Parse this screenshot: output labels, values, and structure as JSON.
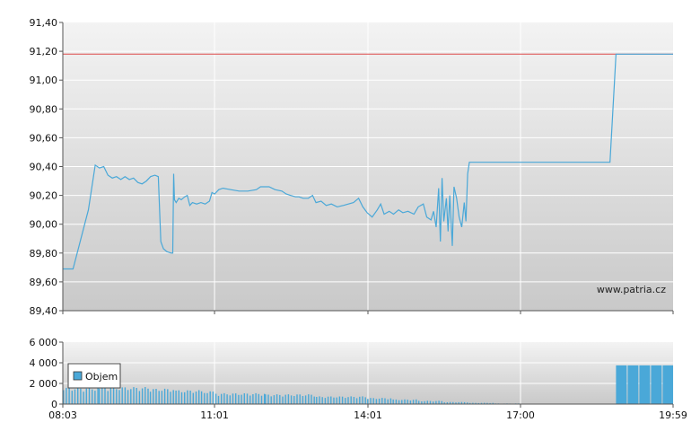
{
  "watermark": "www.patria.cz",
  "colors": {
    "price_line": "#4aa8d8",
    "reference_line": "#dd4a4a",
    "volume_bar": "#4aa8d8",
    "grid": "#ffffff",
    "plot_bg_top": "#f2f2f2",
    "plot_bg_bottom": "#c8c8c8"
  },
  "chart_data": [
    {
      "type": "line",
      "title": "",
      "xlabel": "",
      "ylabel": "",
      "ylim": [
        89.4,
        91.4
      ],
      "xlim": [
        "08:03",
        "19:59"
      ],
      "y_ticks": [
        "89,40",
        "89,60",
        "89,80",
        "90,00",
        "90,20",
        "90,40",
        "90,60",
        "90,80",
        "91,00",
        "91,20",
        "91,40"
      ],
      "grid": true,
      "reference_line": {
        "value": 91.18,
        "color": "#dd4a4a"
      },
      "series": [
        {
          "color": "#4aa8d8",
          "points": [
            [
              "08:03",
              89.69
            ],
            [
              "08:15",
              89.69
            ],
            [
              "08:33",
              90.1
            ],
            [
              "08:41",
              90.41
            ],
            [
              "08:46",
              90.39
            ],
            [
              "08:51",
              90.4
            ],
            [
              "08:56",
              90.34
            ],
            [
              "09:01",
              90.32
            ],
            [
              "09:06",
              90.33
            ],
            [
              "09:11",
              90.31
            ],
            [
              "09:16",
              90.33
            ],
            [
              "09:21",
              90.31
            ],
            [
              "09:26",
              90.32
            ],
            [
              "09:31",
              90.29
            ],
            [
              "09:36",
              90.28
            ],
            [
              "09:41",
              90.3
            ],
            [
              "09:46",
              90.33
            ],
            [
              "09:51",
              90.34
            ],
            [
              "09:55",
              90.33
            ],
            [
              "09:58",
              89.88
            ],
            [
              "10:01",
              89.83
            ],
            [
              "10:05",
              89.81
            ],
            [
              "10:10",
              89.8
            ],
            [
              "10:12",
              89.8
            ],
            [
              "10:13",
              90.35
            ],
            [
              "10:14",
              90.17
            ],
            [
              "10:16",
              90.15
            ],
            [
              "10:19",
              90.18
            ],
            [
              "10:22",
              90.17
            ],
            [
              "10:26",
              90.19
            ],
            [
              "10:29",
              90.2
            ],
            [
              "10:32",
              90.13
            ],
            [
              "10:35",
              90.15
            ],
            [
              "10:40",
              90.14
            ],
            [
              "10:45",
              90.15
            ],
            [
              "10:50",
              90.14
            ],
            [
              "10:55",
              90.16
            ],
            [
              "10:58",
              90.22
            ],
            [
              "11:01",
              90.21
            ],
            [
              "11:06",
              90.24
            ],
            [
              "11:11",
              90.25
            ],
            [
              "11:20",
              90.24
            ],
            [
              "11:30",
              90.23
            ],
            [
              "11:40",
              90.23
            ],
            [
              "11:50",
              90.24
            ],
            [
              "11:55",
              90.26
            ],
            [
              "12:05",
              90.26
            ],
            [
              "12:12",
              90.24
            ],
            [
              "12:20",
              90.23
            ],
            [
              "12:25",
              90.21
            ],
            [
              "12:30",
              90.2
            ],
            [
              "12:36",
              90.19
            ],
            [
              "12:40",
              90.19
            ],
            [
              "12:45",
              90.18
            ],
            [
              "12:51",
              90.18
            ],
            [
              "12:56",
              90.2
            ],
            [
              "13:00",
              90.15
            ],
            [
              "13:06",
              90.16
            ],
            [
              "13:12",
              90.13
            ],
            [
              "13:18",
              90.14
            ],
            [
              "13:25",
              90.12
            ],
            [
              "13:32",
              90.13
            ],
            [
              "13:38",
              90.14
            ],
            [
              "13:44",
              90.15
            ],
            [
              "13:50",
              90.18
            ],
            [
              "13:55",
              90.12
            ],
            [
              "14:00",
              90.08
            ],
            [
              "14:06",
              90.05
            ],
            [
              "14:12",
              90.1
            ],
            [
              "14:16",
              90.14
            ],
            [
              "14:20",
              90.07
            ],
            [
              "14:26",
              90.09
            ],
            [
              "14:31",
              90.07
            ],
            [
              "14:37",
              90.1
            ],
            [
              "14:42",
              90.08
            ],
            [
              "14:48",
              90.09
            ],
            [
              "14:55",
              90.07
            ],
            [
              "15:00",
              90.12
            ],
            [
              "15:06",
              90.14
            ],
            [
              "15:10",
              90.05
            ],
            [
              "15:15",
              90.03
            ],
            [
              "15:18",
              90.09
            ],
            [
              "15:21",
              89.98
            ],
            [
              "15:24",
              90.25
            ],
            [
              "15:26",
              89.88
            ],
            [
              "15:28",
              90.32
            ],
            [
              "15:30",
              90.02
            ],
            [
              "15:33",
              90.18
            ],
            [
              "15:35",
              89.95
            ],
            [
              "15:37",
              90.2
            ],
            [
              "15:40",
              89.85
            ],
            [
              "15:42",
              90.26
            ],
            [
              "15:45",
              90.18
            ],
            [
              "15:48",
              90.05
            ],
            [
              "15:51",
              89.98
            ],
            [
              "15:54",
              90.15
            ],
            [
              "15:56",
              90.02
            ],
            [
              "15:58",
              90.35
            ],
            [
              "16:00",
              90.43
            ],
            [
              "17:10",
              90.43
            ],
            [
              "18:10",
              90.43
            ],
            [
              "18:45",
              90.43
            ],
            [
              "18:52",
              91.18
            ],
            [
              "19:59",
              91.18
            ]
          ]
        }
      ]
    },
    {
      "type": "bar",
      "title": "",
      "xlabel": "",
      "ylabel": "",
      "ylim": [
        0,
        6000
      ],
      "xlim": [
        "08:03",
        "19:59"
      ],
      "y_ticks": [
        "0",
        "2 000",
        "4 000",
        "6 000"
      ],
      "x_ticks": [
        "08:03",
        "11:01",
        "14:01",
        "17:00",
        "19:59"
      ],
      "grid": true,
      "legend": {
        "position": "top-left",
        "entries": [
          "Objem"
        ]
      },
      "series": [
        {
          "name": "Objem",
          "color": "#4aa8d8",
          "segments": [
            [
              "08:03",
              "08:45",
              1600
            ],
            [
              "08:45",
              "09:45",
              1650
            ],
            [
              "09:45",
              "10:15",
              1500
            ],
            [
              "10:15",
              "10:45",
              1350
            ],
            [
              "10:45",
              "11:05",
              1250
            ],
            [
              "11:05",
              "12:00",
              1050
            ],
            [
              "12:00",
              "13:00",
              950
            ],
            [
              "13:00",
              "14:00",
              750
            ],
            [
              "14:00",
              "14:30",
              600
            ],
            [
              "14:30",
              "15:00",
              450
            ],
            [
              "15:00",
              "15:30",
              320
            ],
            [
              "15:30",
              "16:00",
              200
            ],
            [
              "16:00",
              "16:30",
              120
            ],
            [
              "16:30",
              "17:00",
              60
            ],
            [
              "17:00",
              "18:52",
              30
            ],
            [
              "18:52",
              "19:59",
              3750
            ]
          ]
        }
      ]
    }
  ]
}
